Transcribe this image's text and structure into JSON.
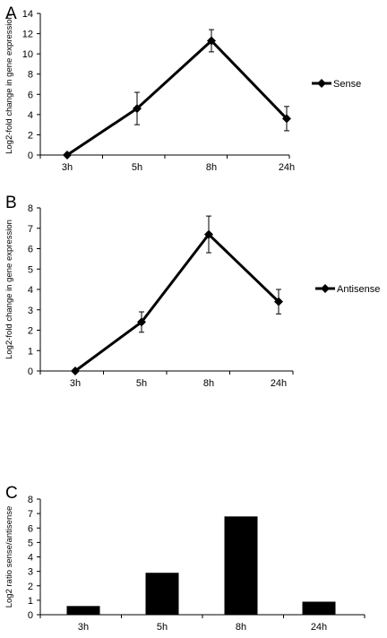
{
  "chart_data": [
    {
      "panel": "A",
      "type": "line",
      "categories": [
        "3h",
        "5h",
        "8h",
        "24h"
      ],
      "series": [
        {
          "name": "Sense",
          "values": [
            0,
            4.6,
            11.3,
            3.6
          ],
          "error": [
            0,
            1.6,
            1.1,
            1.2
          ]
        }
      ],
      "ylabel": "Log2-fold change in gene expression",
      "ylim": [
        0,
        14
      ],
      "yticks": [
        0,
        2,
        4,
        6,
        8,
        10,
        12,
        14
      ],
      "legend": "right",
      "grid": false
    },
    {
      "panel": "B",
      "type": "line",
      "categories": [
        "3h",
        "5h",
        "8h",
        "24h"
      ],
      "series": [
        {
          "name": "Antisense",
          "values": [
            0,
            2.4,
            6.7,
            3.4
          ],
          "error": [
            0,
            0.5,
            0.9,
            0.6
          ]
        }
      ],
      "ylabel": "Log2-fold change in gene expression",
      "ylim": [
        0,
        8
      ],
      "yticks": [
        0,
        1,
        2,
        3,
        4,
        5,
        6,
        7,
        8
      ],
      "legend": "right",
      "grid": false
    },
    {
      "panel": "C",
      "type": "bar",
      "categories": [
        "3h",
        "5h",
        "8h",
        "24h"
      ],
      "values": [
        0.6,
        2.9,
        6.8,
        0.9
      ],
      "ylabel": "Log2 ratio sense/antisense",
      "ylim": [
        0,
        8
      ],
      "yticks": [
        0,
        1,
        2,
        3,
        4,
        5,
        6,
        7,
        8
      ],
      "grid": false
    }
  ]
}
